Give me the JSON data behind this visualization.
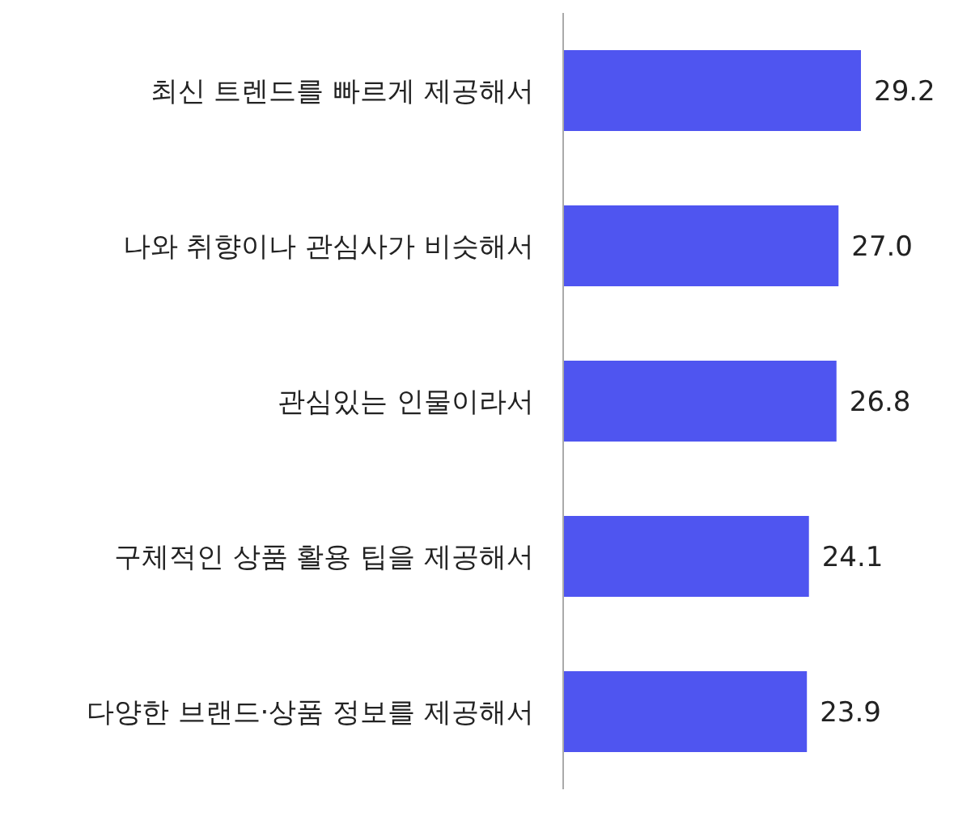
{
  "chart_data": {
    "type": "bar",
    "orientation": "horizontal",
    "categories": [
      "최신 트렌드를 빠르게 제공해서",
      "나와 취향이나 관심사가 비슷해서",
      "관심있는 인물이라서",
      "구체적인 상품 활용 팁을 제공해서",
      "다양한 브랜드·상품 정보를 제공해서"
    ],
    "values": [
      29.2,
      27.0,
      26.8,
      24.1,
      23.9
    ],
    "value_labels": [
      "29.2",
      "27.0",
      "26.8",
      "24.1",
      "23.9"
    ],
    "color": "#4f55f0",
    "tick_labels": "y"
  }
}
